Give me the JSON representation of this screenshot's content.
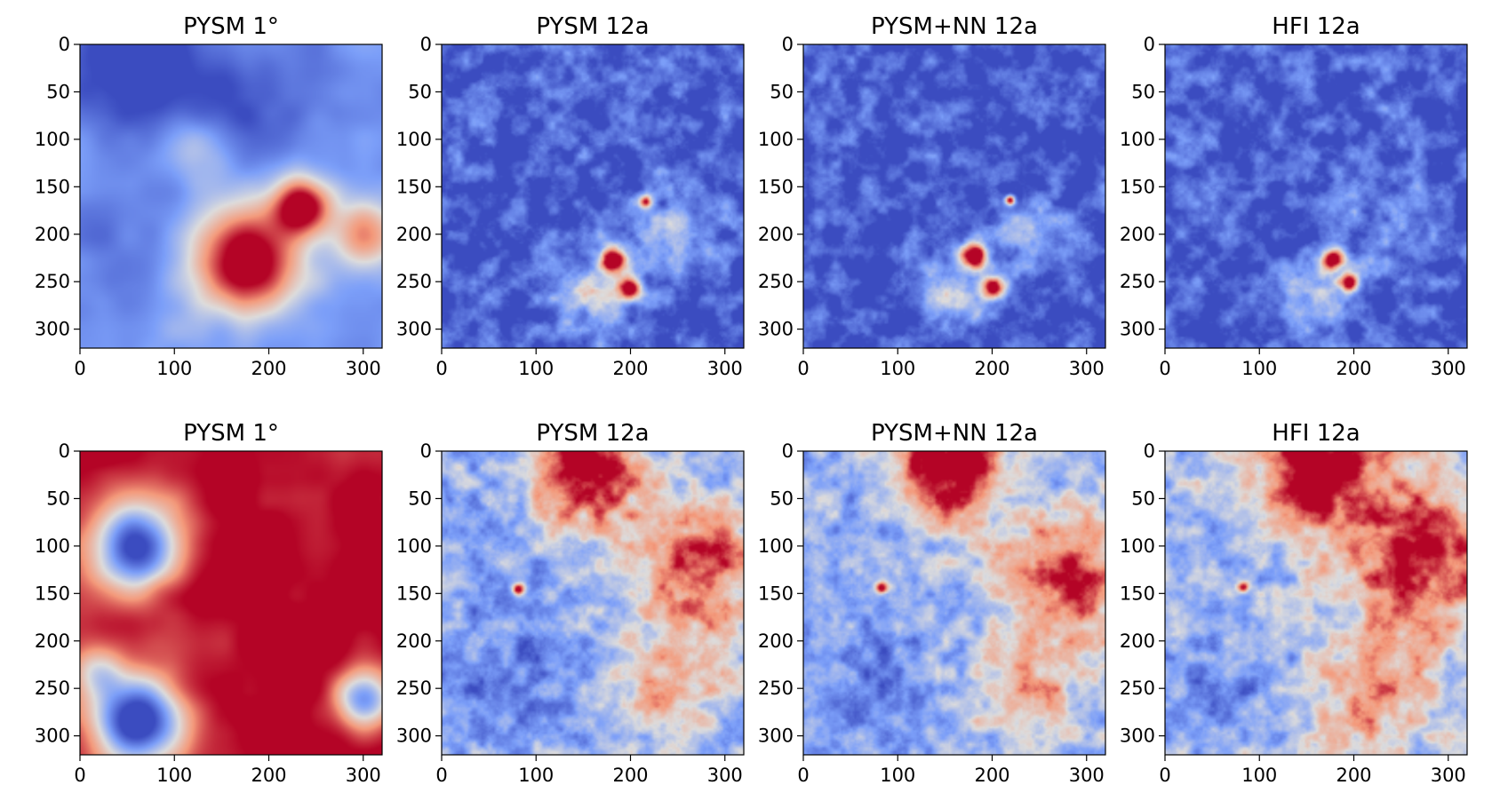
{
  "chart_data": [
    {
      "type": "heatmap",
      "title": "PYSM 1°",
      "row": 1,
      "colormap": "coolwarm",
      "xlim": [
        0,
        320
      ],
      "ylim": [
        320,
        0
      ],
      "xticks": [
        0,
        100,
        200,
        300
      ],
      "yticks": [
        0,
        50,
        100,
        150,
        200,
        250,
        300
      ],
      "tick_labels_x": [
        "0",
        "100",
        "200",
        "300"
      ],
      "tick_labels_y": [
        "0",
        "50",
        "100",
        "150",
        "200",
        "250",
        "300"
      ],
      "blobs": [
        {
          "cx": 175,
          "cy": 225,
          "r": 55,
          "level": 1.0
        },
        {
          "cx": 235,
          "cy": 170,
          "r": 30,
          "level": 0.95
        },
        {
          "cx": 300,
          "cy": 200,
          "r": 35,
          "level": 0.45
        },
        {
          "cx": 40,
          "cy": 20,
          "r": 70,
          "level": -0.85
        },
        {
          "cx": 160,
          "cy": 60,
          "r": 80,
          "level": -0.7
        },
        {
          "cx": 40,
          "cy": 200,
          "r": 60,
          "level": -0.6
        },
        {
          "cx": 120,
          "cy": 110,
          "r": 40,
          "level": 0.05
        }
      ],
      "base": -0.4,
      "smoothness": 0.9
    },
    {
      "type": "heatmap",
      "title": "PYSM 12a",
      "row": 1,
      "colormap": "coolwarm",
      "xlim": [
        0,
        320
      ],
      "ylim": [
        320,
        0
      ],
      "xticks": [
        0,
        100,
        200,
        300
      ],
      "yticks": [
        0,
        50,
        100,
        150,
        200,
        250,
        300
      ],
      "tick_labels_x": [
        "0",
        "100",
        "200",
        "300"
      ],
      "tick_labels_y": [
        "0",
        "50",
        "100",
        "150",
        "200",
        "250",
        "300"
      ],
      "blobs": [
        {
          "cx": 180,
          "cy": 225,
          "r": 14,
          "level": 1.0
        },
        {
          "cx": 198,
          "cy": 255,
          "r": 12,
          "level": 0.95
        },
        {
          "cx": 215,
          "cy": 165,
          "r": 6,
          "level": 0.4
        },
        {
          "cx": 160,
          "cy": 260,
          "r": 35,
          "level": -0.15
        },
        {
          "cx": 240,
          "cy": 200,
          "r": 40,
          "level": -0.3
        }
      ],
      "base": -0.75,
      "smoothness": 0.3
    },
    {
      "type": "heatmap",
      "title": "PYSM+NN 12a",
      "row": 1,
      "colormap": "coolwarm",
      "xlim": [
        0,
        320
      ],
      "ylim": [
        320,
        0
      ],
      "xticks": [
        0,
        100,
        200,
        300
      ],
      "yticks": [
        0,
        50,
        100,
        150,
        200,
        250,
        300
      ],
      "tick_labels_x": [
        "0",
        "100",
        "200",
        "300"
      ],
      "tick_labels_y": [
        "0",
        "50",
        "100",
        "150",
        "200",
        "250",
        "300"
      ],
      "blobs": [
        {
          "cx": 180,
          "cy": 222,
          "r": 14,
          "level": 1.0
        },
        {
          "cx": 200,
          "cy": 255,
          "r": 12,
          "level": 0.95
        },
        {
          "cx": 218,
          "cy": 163,
          "r": 5,
          "level": 0.8
        },
        {
          "cx": 160,
          "cy": 260,
          "r": 35,
          "level": -0.2
        },
        {
          "cx": 240,
          "cy": 200,
          "r": 40,
          "level": -0.35
        }
      ],
      "base": -0.78,
      "smoothness": 0.25
    },
    {
      "type": "heatmap",
      "title": "HFI 12a",
      "row": 1,
      "colormap": "coolwarm",
      "xlim": [
        0,
        320
      ],
      "ylim": [
        320,
        0
      ],
      "xticks": [
        0,
        100,
        200,
        300
      ],
      "yticks": [
        0,
        50,
        100,
        150,
        200,
        250,
        300
      ],
      "tick_labels_x": [
        "0",
        "100",
        "200",
        "300"
      ],
      "tick_labels_y": [
        "0",
        "50",
        "100",
        "150",
        "200",
        "250",
        "300"
      ],
      "blobs": [
        {
          "cx": 178,
          "cy": 225,
          "r": 12,
          "level": 1.0
        },
        {
          "cx": 195,
          "cy": 250,
          "r": 9,
          "level": 0.9
        },
        {
          "cx": 160,
          "cy": 260,
          "r": 35,
          "level": -0.25
        },
        {
          "cx": 240,
          "cy": 200,
          "r": 40,
          "level": -0.4
        }
      ],
      "base": -0.75,
      "smoothness": 0.3
    },
    {
      "type": "heatmap",
      "title": "PYSM 1°",
      "row": 2,
      "colormap": "coolwarm",
      "xlim": [
        0,
        320
      ],
      "ylim": [
        320,
        0
      ],
      "xticks": [
        0,
        100,
        200,
        300
      ],
      "yticks": [
        0,
        50,
        100,
        150,
        200,
        250,
        300
      ],
      "tick_labels_x": [
        "0",
        "100",
        "200",
        "300"
      ],
      "tick_labels_y": [
        "0",
        "50",
        "100",
        "150",
        "200",
        "250",
        "300"
      ],
      "blobs": [
        {
          "cx": 240,
          "cy": 150,
          "r": 130,
          "level": 1.0
        },
        {
          "cx": 60,
          "cy": 280,
          "r": 45,
          "level": -0.8
        },
        {
          "cx": 60,
          "cy": 100,
          "r": 45,
          "level": -0.6
        },
        {
          "cx": 80,
          "cy": 140,
          "r": 14,
          "level": 1.0
        },
        {
          "cx": 20,
          "cy": 230,
          "r": 25,
          "level": 0.3
        },
        {
          "cx": 300,
          "cy": 260,
          "r": 30,
          "level": -0.3
        }
      ],
      "base": 0.9,
      "smoothness": 0.9
    },
    {
      "type": "heatmap",
      "title": "PYSM 12a",
      "row": 2,
      "colormap": "coolwarm",
      "xlim": [
        0,
        320
      ],
      "ylim": [
        320,
        0
      ],
      "xticks": [
        0,
        100,
        200,
        300
      ],
      "yticks": [
        0,
        50,
        100,
        150,
        200,
        250,
        300
      ],
      "tick_labels_x": [
        "0",
        "100",
        "200",
        "300"
      ],
      "tick_labels_y": [
        "0",
        "50",
        "100",
        "150",
        "200",
        "250",
        "300"
      ],
      "blobs": [
        {
          "cx": 150,
          "cy": 15,
          "r": 60,
          "level": 0.95
        },
        {
          "cx": 270,
          "cy": 120,
          "r": 70,
          "level": 0.6
        },
        {
          "cx": 240,
          "cy": 250,
          "r": 60,
          "level": 0.25
        },
        {
          "cx": 80,
          "cy": 145,
          "r": 6,
          "level": 0.9
        },
        {
          "cx": 60,
          "cy": 240,
          "r": 70,
          "level": -0.55
        },
        {
          "cx": 80,
          "cy": 80,
          "r": 50,
          "level": -0.45
        }
      ],
      "base": -0.3,
      "smoothness": 0.35
    },
    {
      "type": "heatmap",
      "title": "PYSM+NN 12a",
      "row": 2,
      "colormap": "coolwarm",
      "xlim": [
        0,
        320
      ],
      "ylim": [
        320,
        0
      ],
      "xticks": [
        0,
        100,
        200,
        300
      ],
      "yticks": [
        0,
        50,
        100,
        150,
        200,
        250,
        300
      ],
      "tick_labels_x": [
        "0",
        "100",
        "200",
        "300"
      ],
      "tick_labels_y": [
        "0",
        "50",
        "100",
        "150",
        "200",
        "250",
        "300"
      ],
      "blobs": [
        {
          "cx": 150,
          "cy": 15,
          "r": 60,
          "level": 0.95
        },
        {
          "cx": 280,
          "cy": 130,
          "r": 70,
          "level": 0.65
        },
        {
          "cx": 240,
          "cy": 250,
          "r": 60,
          "level": 0.2
        },
        {
          "cx": 82,
          "cy": 143,
          "r": 6,
          "level": 0.9
        },
        {
          "cx": 60,
          "cy": 240,
          "r": 70,
          "level": -0.5
        },
        {
          "cx": 80,
          "cy": 80,
          "r": 50,
          "level": -0.4
        }
      ],
      "base": -0.3,
      "smoothness": 0.3
    },
    {
      "type": "heatmap",
      "title": "HFI 12a",
      "row": 2,
      "colormap": "coolwarm",
      "xlim": [
        0,
        320
      ],
      "ylim": [
        320,
        0
      ],
      "xticks": [
        0,
        100,
        200,
        300
      ],
      "yticks": [
        0,
        50,
        100,
        150,
        200,
        250,
        300
      ],
      "tick_labels_x": [
        "0",
        "100",
        "200",
        "300"
      ],
      "tick_labels_y": [
        "0",
        "50",
        "100",
        "150",
        "200",
        "250",
        "300"
      ],
      "blobs": [
        {
          "cx": 160,
          "cy": 15,
          "r": 65,
          "level": 0.95
        },
        {
          "cx": 270,
          "cy": 110,
          "r": 80,
          "level": 0.8
        },
        {
          "cx": 220,
          "cy": 260,
          "r": 60,
          "level": 0.35
        },
        {
          "cx": 82,
          "cy": 143,
          "r": 6,
          "level": 0.9
        },
        {
          "cx": 60,
          "cy": 240,
          "r": 70,
          "level": -0.45
        },
        {
          "cx": 70,
          "cy": 80,
          "r": 50,
          "level": -0.35
        }
      ],
      "base": -0.2,
      "smoothness": 0.3
    }
  ]
}
